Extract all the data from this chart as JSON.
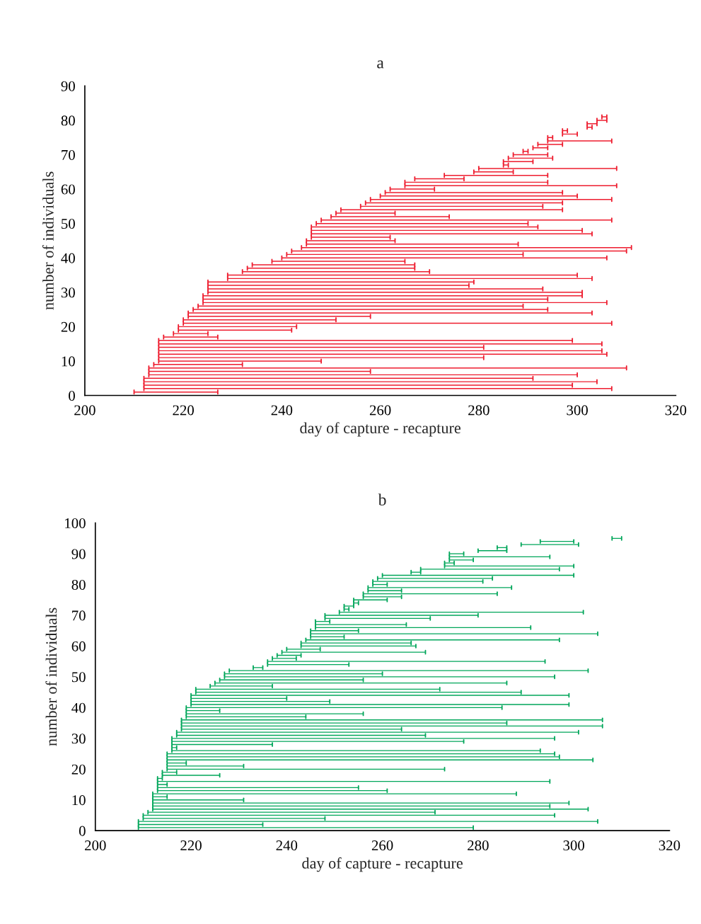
{
  "chart_data": [
    {
      "type": "bar",
      "orientation": "horizontal",
      "title": "a",
      "xlabel": "day of capture - recapture",
      "ylabel": "number of individuals",
      "color": "#ee1c2e",
      "x": [
        1,
        2,
        3,
        4,
        5,
        6,
        7,
        8,
        9,
        10,
        11,
        12,
        13,
        14,
        15,
        16,
        17,
        18,
        19,
        20,
        21,
        22,
        23,
        24,
        25,
        26,
        27,
        28,
        29,
        30,
        31,
        32,
        33,
        34,
        35,
        36,
        37,
        38,
        39,
        40,
        41,
        42,
        43,
        44,
        45,
        46,
        47,
        48,
        49,
        50,
        51,
        52,
        53,
        54,
        55,
        56,
        57,
        58,
        59,
        60,
        61,
        62,
        63,
        64,
        65,
        66,
        67,
        68,
        69,
        70,
        71,
        72,
        73,
        74,
        75,
        76,
        77,
        78,
        79,
        80,
        81
      ],
      "base": [
        210,
        212,
        212,
        212,
        212,
        213,
        213,
        213,
        214,
        215,
        215,
        215,
        215,
        215,
        215,
        215,
        216,
        218,
        219,
        219,
        220,
        220,
        221,
        221,
        222,
        223,
        224,
        224,
        224,
        225,
        225,
        225,
        225,
        229,
        229,
        232,
        233,
        234,
        238,
        240,
        241,
        242,
        244,
        245,
        245,
        246,
        246,
        246,
        246,
        247,
        248,
        250,
        251,
        252,
        256,
        257,
        258,
        260,
        261,
        262,
        265,
        265,
        267,
        273,
        279,
        280,
        285,
        285,
        286,
        287,
        289,
        291,
        292,
        294,
        294,
        297,
        297,
        302,
        302,
        304,
        305
      ],
      "values": [
        17,
        95,
        87,
        92,
        79,
        87,
        45,
        97,
        18,
        33,
        66,
        91,
        90,
        66,
        90,
        84,
        11,
        7,
        23,
        24,
        87,
        31,
        37,
        82,
        72,
        66,
        82,
        70,
        77,
        76,
        68,
        53,
        54,
        74,
        71,
        38,
        34,
        33,
        27,
        66,
        48,
        68,
        67,
        43,
        18,
        16,
        57,
        55,
        46,
        43,
        59,
        24,
        12,
        45,
        37,
        40,
        49,
        40,
        36,
        9,
        43,
        29,
        10,
        21,
        8,
        28,
        1,
        6,
        9,
        7,
        1,
        3,
        5,
        13,
        1,
        3,
        1,
        1,
        2,
        2,
        1
      ],
      "xlim": [
        200,
        320
      ],
      "xticks": [
        200,
        220,
        240,
        260,
        280,
        300,
        320
      ],
      "ylim": [
        0,
        90
      ],
      "yticks": [
        0,
        10,
        20,
        30,
        40,
        50,
        60,
        70,
        80,
        90
      ],
      "grid": false
    },
    {
      "type": "bar",
      "orientation": "horizontal",
      "title": "b",
      "xlabel": "day of capture - recapture",
      "ylabel": "number of individuals",
      "color": "#00a65a",
      "x": [
        1,
        2,
        3,
        4,
        5,
        6,
        7,
        8,
        9,
        10,
        11,
        12,
        13,
        14,
        15,
        16,
        17,
        18,
        19,
        20,
        21,
        22,
        23,
        24,
        25,
        26,
        27,
        28,
        29,
        30,
        31,
        32,
        33,
        34,
        35,
        36,
        37,
        38,
        39,
        40,
        41,
        42,
        43,
        44,
        45,
        46,
        47,
        48,
        49,
        50,
        51,
        52,
        53,
        54,
        55,
        56,
        57,
        58,
        59,
        60,
        61,
        62,
        63,
        64,
        65,
        66,
        67,
        68,
        69,
        70,
        71,
        72,
        73,
        74,
        75,
        76,
        77,
        78,
        79,
        80,
        81,
        82,
        83,
        84,
        85,
        86,
        87,
        88,
        89,
        90,
        91,
        92,
        93,
        94,
        95
      ],
      "base": [
        209,
        209,
        209,
        210,
        210,
        211,
        212,
        212,
        212,
        212,
        212,
        212,
        213,
        213,
        213,
        213,
        213,
        214,
        214,
        215,
        215,
        215,
        215,
        215,
        215,
        216,
        216,
        216,
        216,
        216,
        217,
        217,
        218,
        218,
        218,
        218,
        219,
        219,
        219,
        219,
        220,
        220,
        220,
        220,
        221,
        221,
        224,
        225,
        226,
        227,
        227,
        228,
        233,
        236,
        236,
        237,
        238,
        239,
        240,
        243,
        243,
        244,
        245,
        245,
        245,
        246,
        246,
        246,
        248,
        248,
        251,
        252,
        252,
        254,
        254,
        256,
        256,
        257,
        257,
        258,
        258,
        259,
        260,
        266,
        268,
        273,
        273,
        274,
        274,
        274,
        280,
        284,
        289,
        293,
        308
      ],
      "values": [
        70,
        26,
        96,
        38,
        86,
        60,
        91,
        83,
        87,
        19,
        3,
        76,
        48,
        42,
        2,
        82,
        1,
        12,
        3,
        58,
        16,
        4,
        89,
        82,
        81,
        77,
        1,
        21,
        61,
        80,
        52,
        84,
        46,
        88,
        68,
        88,
        25,
        37,
        7,
        66,
        79,
        29,
        20,
        79,
        68,
        51,
        13,
        61,
        30,
        69,
        33,
        75,
        2,
        17,
        58,
        5,
        5,
        30,
        7,
        24,
        23,
        53,
        7,
        60,
        10,
        45,
        19,
        3,
        22,
        32,
        51,
        1,
        2,
        1,
        7,
        8,
        28,
        7,
        30,
        3,
        23,
        24,
        40,
        2,
        29,
        27,
        2,
        5,
        21,
        3,
        6,
        2,
        12,
        7,
        2
      ],
      "xlim": [
        200,
        320
      ],
      "xticks": [
        200,
        220,
        240,
        260,
        280,
        300,
        320
      ],
      "ylim": [
        0,
        100
      ],
      "yticks": [
        0,
        10,
        20,
        30,
        40,
        50,
        60,
        70,
        80,
        90,
        100
      ],
      "grid": false
    }
  ]
}
